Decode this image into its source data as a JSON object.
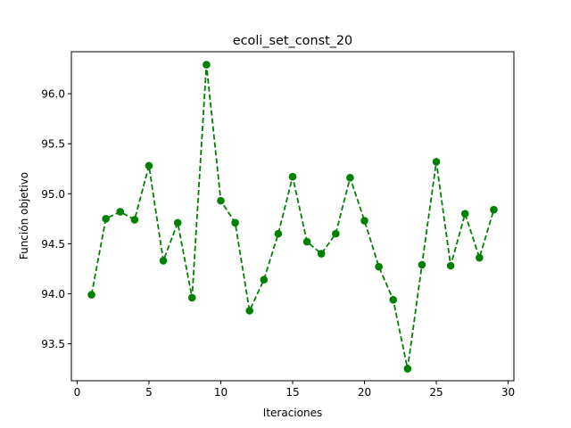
{
  "chart_data": {
    "type": "line",
    "title": "ecoli_set_const_20",
    "xlabel": "Iteraciones",
    "ylabel": "Función objetivo",
    "xlim": [
      -0.4,
      30.4
    ],
    "ylim": [
      93.13,
      96.42
    ],
    "xticks": [
      0,
      5,
      10,
      15,
      20,
      25,
      30
    ],
    "xtick_labels": [
      "0",
      "5",
      "10",
      "15",
      "20",
      "25",
      "30"
    ],
    "yticks": [
      93.5,
      94.0,
      94.5,
      95.0,
      95.5,
      96.0
    ],
    "ytick_labels": [
      "93.5",
      "94.0",
      "94.5",
      "95.0",
      "95.5",
      "96.0"
    ],
    "grid": false,
    "legend": "none",
    "series": [
      {
        "color": "#008000",
        "line_style": "dashed",
        "marker": "circle",
        "x": [
          1,
          2,
          3,
          4,
          5,
          6,
          7,
          8,
          9,
          10,
          11,
          12,
          13,
          14,
          15,
          16,
          17,
          18,
          19,
          20,
          21,
          22,
          23,
          24,
          25,
          26,
          27,
          28,
          29
        ],
        "y": [
          93.99,
          94.75,
          94.82,
          94.74,
          95.28,
          94.33,
          94.71,
          93.96,
          96.29,
          94.93,
          94.71,
          93.83,
          94.14,
          94.6,
          95.17,
          94.52,
          94.4,
          94.6,
          95.16,
          94.73,
          94.27,
          93.94,
          93.25,
          94.29,
          95.32,
          94.28,
          94.8,
          94.36,
          94.84
        ]
      }
    ]
  }
}
